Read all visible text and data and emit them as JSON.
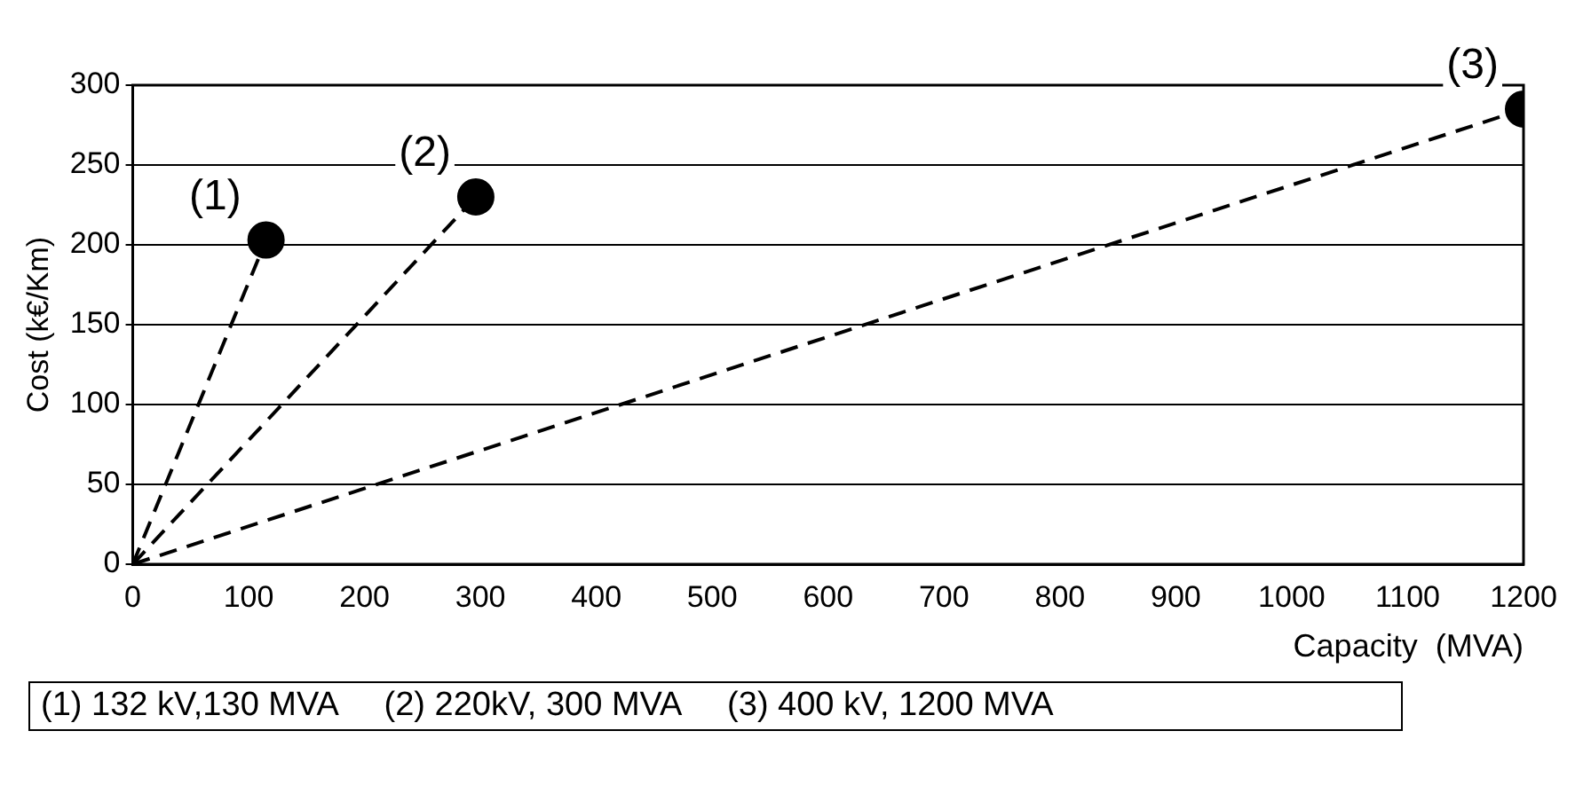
{
  "chart_data": {
    "type": "line",
    "xlabel": "Capacity  (MVA)",
    "ylabel": "Cost (k€/Km)",
    "xlim": [
      0,
      1200
    ],
    "xticks": [
      0,
      100,
      200,
      300,
      400,
      500,
      600,
      700,
      800,
      900,
      1000,
      1100,
      1200
    ],
    "ylim": [
      0,
      300
    ],
    "yticks": [
      0,
      50,
      100,
      150,
      200,
      250,
      300
    ],
    "grid": "y",
    "legend": false,
    "series": [
      {
        "type": "line",
        "color": "#000000",
        "x": [
          0,
          115
        ],
        "values": [
          0,
          203
        ],
        "line_style": "dashed",
        "marker": "none"
      },
      {
        "type": "line",
        "color": "#000000",
        "x": [
          0,
          296
        ],
        "values": [
          0,
          230
        ],
        "line_style": "dashed",
        "marker": "none"
      },
      {
        "type": "line",
        "color": "#000000",
        "x": [
          0,
          1200
        ],
        "values": [
          0,
          285
        ],
        "line_style": "dashed",
        "marker": "none"
      },
      {
        "type": "scatter",
        "color": "#000000",
        "x": [
          115,
          296,
          1200
        ],
        "values": [
          203,
          230,
          285
        ],
        "marker": "circle"
      }
    ],
    "annotations": [
      {
        "text": "(1)",
        "x": 115,
        "y": 203
      },
      {
        "text": "(2)",
        "x": 296,
        "y": 230
      },
      {
        "text": "(3)",
        "x": 1200,
        "y": 285
      },
      "(1) 132 kV,130 MVA     (2) 220kV, 300 MVA     (3) 400 kV, 1200 MVA"
    ]
  }
}
